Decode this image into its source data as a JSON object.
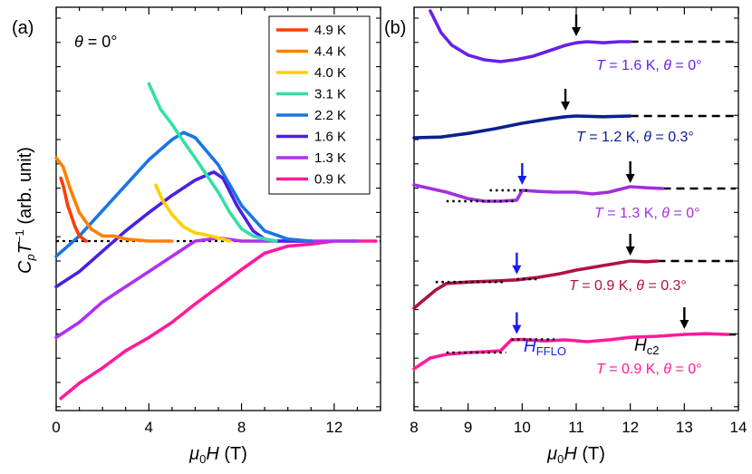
{
  "chart_data": [
    {
      "panel": "(a)",
      "type": "line",
      "annotation": "θ = 0°",
      "xlabel": "μ0H (T)",
      "ylabel": "CpT−1 (arb. unit)",
      "xlim": [
        0,
        14
      ],
      "xticks": [
        0,
        4,
        8,
        12
      ],
      "legend_position": "top-right",
      "reference_line": {
        "style": "dotted",
        "y": 0
      },
      "series": [
        {
          "name": "4.9 K",
          "color": "#ff3d00",
          "x": [
            0.2,
            0.3,
            0.5,
            0.8,
            1.0,
            1.3
          ],
          "y": [
            0.62,
            0.55,
            0.35,
            0.15,
            0.05,
            0.0
          ]
        },
        {
          "name": "4.4 K",
          "color": "#ff7f00",
          "x": [
            0.0,
            0.3,
            0.6,
            1.0,
            1.5,
            2.0,
            2.5,
            3.0,
            4.0,
            5.0
          ],
          "y": [
            0.82,
            0.73,
            0.52,
            0.28,
            0.12,
            0.05,
            0.05,
            0.02,
            0.0,
            0.0
          ]
        },
        {
          "name": "4.0 K",
          "color": "#ffd000",
          "x": [
            4.3,
            4.6,
            5.0,
            5.5,
            6.0,
            6.5,
            7.0,
            7.5
          ],
          "y": [
            0.55,
            0.4,
            0.26,
            0.14,
            0.08,
            0.06,
            0.03,
            0.0
          ]
        },
        {
          "name": "3.1 K",
          "color": "#33e0a8",
          "x": [
            4.0,
            4.5,
            5.0,
            5.5,
            6.0,
            6.5,
            7.0,
            7.5,
            8.0,
            8.5,
            9.0,
            9.5
          ],
          "y": [
            1.55,
            1.3,
            1.15,
            0.98,
            0.82,
            0.65,
            0.48,
            0.28,
            0.12,
            0.05,
            0.02,
            0.0
          ]
        },
        {
          "name": "2.2 K",
          "color": "#1a74e6",
          "x": [
            0.0,
            1.0,
            2.0,
            3.0,
            4.0,
            5.0,
            5.5,
            6.0,
            7.0,
            8.0,
            9.0,
            10.0,
            11.0
          ],
          "y": [
            -0.15,
            0.05,
            0.3,
            0.55,
            0.8,
            1.0,
            1.07,
            1.02,
            0.75,
            0.35,
            0.1,
            0.02,
            0.0
          ]
        },
        {
          "name": "1.6 K",
          "color": "#4a1fe6",
          "x": [
            0.0,
            1.0,
            2.0,
            3.0,
            4.0,
            5.0,
            6.0,
            6.8,
            7.2,
            7.8,
            8.5,
            9.0,
            9.5,
            10.0,
            11.0
          ],
          "y": [
            -0.45,
            -0.3,
            -0.1,
            0.1,
            0.28,
            0.45,
            0.6,
            0.68,
            0.62,
            0.35,
            0.1,
            0.02,
            0.0,
            0.0,
            0.0
          ]
        },
        {
          "name": "1.3 K",
          "color": "#b030f0",
          "x": [
            0.0,
            1.0,
            2.0,
            3.0,
            4.0,
            5.0,
            6.0,
            7.0,
            8.0,
            9.0,
            10.0,
            11.0,
            12.0,
            13.0
          ],
          "y": [
            -0.95,
            -0.8,
            -0.6,
            -0.45,
            -0.3,
            -0.15,
            0.0,
            0.03,
            0.0,
            0.0,
            0.0,
            0.0,
            0.0,
            0.0
          ]
        },
        {
          "name": "0.9 K",
          "color": "#ff1a9c",
          "x": [
            0.2,
            1.0,
            2.0,
            3.0,
            4.0,
            5.0,
            6.0,
            7.0,
            8.0,
            9.0,
            10.0,
            11.0,
            12.0,
            13.0,
            13.8
          ],
          "y": [
            -1.55,
            -1.4,
            -1.25,
            -1.08,
            -0.95,
            -0.8,
            -0.62,
            -0.45,
            -0.28,
            -0.12,
            -0.05,
            -0.03,
            0.0,
            0.0,
            0.0
          ]
        }
      ]
    },
    {
      "panel": "(b)",
      "type": "line",
      "xlabel": "μ0H (T)",
      "xlim": [
        8,
        14
      ],
      "xticks": [
        8,
        9,
        10,
        11,
        12,
        13,
        14
      ],
      "series": [
        {
          "label": "T = 1.6 K, θ = 0°",
          "color": "#6a1fe6",
          "arrow_Hc2": 11.0,
          "x": [
            8.3,
            8.5,
            8.7,
            9.0,
            9.3,
            9.6,
            9.9,
            10.2,
            10.5,
            10.8,
            11.0,
            11.2,
            11.5,
            11.8,
            12.0
          ],
          "y": [
            1.4,
            0.8,
            0.45,
            0.18,
            0.05,
            0.0,
            0.06,
            0.15,
            0.3,
            0.45,
            0.52,
            0.55,
            0.52,
            0.55,
            0.55
          ]
        },
        {
          "label": "T = 1.2 K, θ = 0.3°",
          "color": "#0a2090",
          "arrow_Hc2": 10.8,
          "x": [
            8.0,
            8.5,
            9.0,
            9.5,
            10.0,
            10.5,
            10.8,
            11.0,
            11.5,
            12.0
          ],
          "y": [
            0.0,
            0.02,
            0.12,
            0.25,
            0.4,
            0.52,
            0.58,
            0.6,
            0.58,
            0.6
          ]
        },
        {
          "label": "T = 1.3 K, θ = 0°",
          "color": "#a030e0",
          "arrow_Hc2": 12.0,
          "arrow_HFFLO": 10.0,
          "x": [
            8.0,
            8.3,
            8.6,
            9.0,
            9.3,
            9.6,
            9.9,
            10.0,
            10.3,
            10.6,
            11.0,
            11.3,
            11.6,
            12.0,
            12.3,
            12.6
          ],
          "y": [
            0.5,
            0.4,
            0.3,
            0.12,
            0.05,
            0.05,
            0.08,
            0.35,
            0.32,
            0.3,
            0.3,
            0.25,
            0.3,
            0.45,
            0.42,
            0.4
          ]
        },
        {
          "label": "T = 0.9 K, θ = 0.3°",
          "color": "#b0104a",
          "arrow_Hc2": 12.0,
          "arrow_HFFLO": 9.9,
          "x": [
            8.0,
            8.2,
            8.4,
            8.6,
            9.0,
            9.5,
            9.9,
            10.3,
            10.7,
            11.0,
            11.4,
            11.8,
            12.0,
            12.3,
            12.5
          ],
          "y": [
            0.0,
            0.25,
            0.5,
            0.68,
            0.72,
            0.75,
            0.78,
            0.85,
            0.95,
            1.05,
            1.15,
            1.25,
            1.3,
            1.28,
            1.3
          ]
        },
        {
          "label": "T = 0.9 K, θ = 0°",
          "color": "#ff1a9c",
          "arrow_Hc2": 13.0,
          "arrow_HFFLO": 9.9,
          "x": [
            8.0,
            8.3,
            8.6,
            9.0,
            9.3,
            9.6,
            9.8,
            10.0,
            10.4,
            10.8,
            11.2,
            11.6,
            12.0,
            12.5,
            13.0,
            13.4,
            13.8
          ],
          "y": [
            -0.35,
            -0.05,
            0.05,
            0.1,
            0.12,
            0.15,
            0.45,
            0.46,
            0.42,
            0.45,
            0.4,
            0.45,
            0.52,
            0.55,
            0.6,
            0.62,
            0.6
          ]
        }
      ],
      "labels": {
        "HFFLO": "HFFLO",
        "Hc2": "Hc2"
      }
    }
  ],
  "colors": {
    "arrow_Hc2": "#000000",
    "arrow_HFFLO": "#1a1af0"
  }
}
